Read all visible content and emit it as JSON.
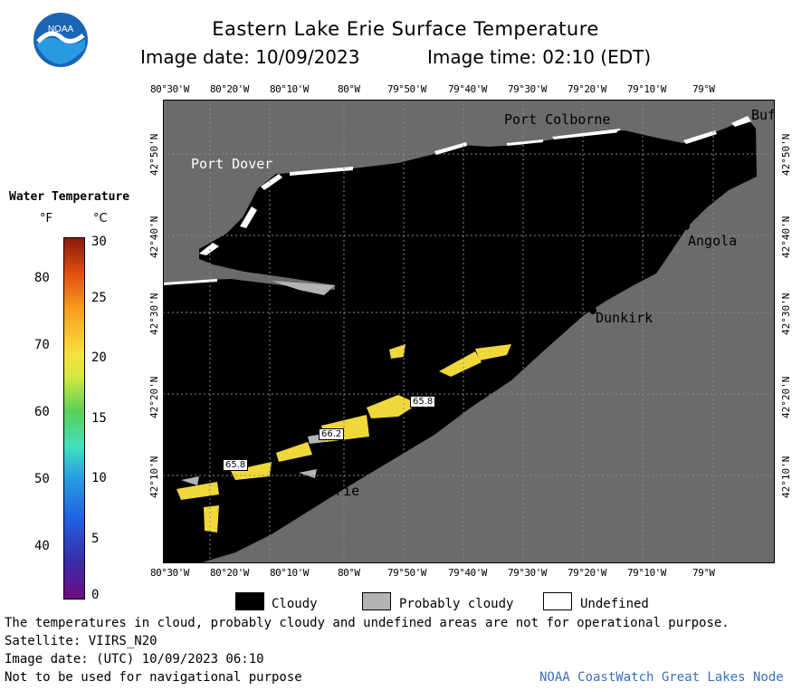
{
  "title": "Eastern Lake Erie Surface Temperature",
  "image_date_label": "Image date: 10/09/2023",
  "image_time_label": "Image time: 02:10 (EDT)",
  "logo_text": "NOAA",
  "lon_ticks": [
    "80°30'W",
    "80°20'W",
    "80°10'W",
    "80°W",
    "79°50'W",
    "79°40'W",
    "79°30'W",
    "79°20'W",
    "79°10'W",
    "79°W"
  ],
  "lat_ticks_left": [
    "42°50'N",
    "42°40'N",
    "42°30'N",
    "42°20'N",
    "42°10'N"
  ],
  "lat_ticks_right": [
    "42°50'N",
    "42°40'N",
    "42°30'N",
    "42°20'N",
    "42°10'N"
  ],
  "cities": {
    "port_dover": "Port Dover",
    "port_colborne": "Port Colborne",
    "buffalo": "Buf",
    "angola": "Angola",
    "dunkirk": "Dunkirk",
    "erie": "Erie"
  },
  "temperature_readouts": [
    "65.8",
    "66.2",
    "65.8"
  ],
  "colorbar": {
    "title": "Water Temperature",
    "unit_f": "°F",
    "unit_c": "°C",
    "f_ticks": [
      "80",
      "70",
      "60",
      "50",
      "40"
    ],
    "c_ticks": [
      "30",
      "25",
      "20",
      "15",
      "10",
      "5",
      "0"
    ]
  },
  "legend": {
    "cloudy": "Cloudy",
    "probably_cloudy": "Probably cloudy",
    "undefined": "Undefined"
  },
  "footer": {
    "disclaimer": "The temperatures in cloud, probably cloudy and undefined areas are not for operational purpose.",
    "satellite": "Satellite: VIIRS_N20",
    "utc_date": "Image date: (UTC) 10/09/2023  06:10",
    "navigation": "Not to be used for navigational purpose",
    "credit": "NOAA CoastWatch Great Lakes Node"
  },
  "colors": {
    "land": "#6b6b6b",
    "cloud": "#000000",
    "probably_cloudy": "#b4b4b4",
    "warm_water": "#f0d838",
    "credit_text": "#3a6fbf"
  }
}
